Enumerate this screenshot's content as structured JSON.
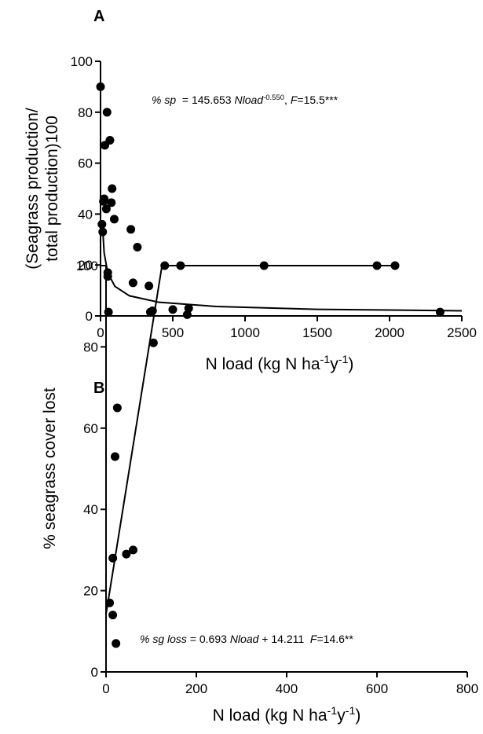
{
  "chart_data": [
    {
      "type": "scatter",
      "panel_label": "A",
      "y_label": [
        "(Seagrass production/",
        "total production)100"
      ],
      "x_label": [
        {
          "text": "N load (kg N ha"
        },
        {
          "text": "-1",
          "style": "sup"
        },
        {
          "text": "y"
        },
        {
          "text": "-1",
          "style": "sup"
        },
        {
          "text": ")"
        }
      ],
      "annotation": [
        {
          "text": "% sp",
          "style": "italic"
        },
        {
          "text": "  = 145.653 "
        },
        {
          "text": "Nload",
          "style": "italic"
        },
        {
          "text": "-0.550",
          "style": "sup"
        },
        {
          "text": ", "
        },
        {
          "text": "F",
          "style": "italic"
        },
        {
          "text": "=15.5***"
        }
      ],
      "x": [
        0,
        10,
        15,
        20,
        25,
        30,
        40,
        45,
        50,
        50,
        55,
        65,
        75,
        80,
        95,
        210,
        225,
        255,
        345,
        360,
        500,
        600,
        610,
        2350
      ],
      "y": [
        90,
        36,
        33,
        45,
        46,
        67,
        42,
        80,
        17,
        15.5,
        1.5,
        69,
        44.5,
        50,
        38,
        34,
        13,
        27,
        1.5,
        2,
        2.5,
        0.5,
        3,
        1.5
      ],
      "fit": {
        "x": [
          12,
          25,
          50,
          100,
          200,
          400,
          800,
          1500,
          2500
        ],
        "y": [
          37.1,
          24.8,
          16.9,
          11.6,
          7.9,
          5.4,
          3.7,
          2.6,
          2.0
        ]
      },
      "color": "#000000",
      "xlim": [
        0,
        2500
      ],
      "xticks": [
        0,
        500,
        1000,
        1500,
        2000,
        2500
      ],
      "ylim": [
        0,
        100
      ],
      "yticks": [
        0,
        20,
        40,
        60,
        80,
        100
      ]
    },
    {
      "type": "scatter",
      "panel_label": "B",
      "y_label": [
        "% seagrass cover lost"
      ],
      "x_label": [
        {
          "text": "N load (kg N ha"
        },
        {
          "text": "-1",
          "style": "sup"
        },
        {
          "text": "y"
        },
        {
          "text": "-1",
          "style": "sup"
        },
        {
          "text": ")"
        }
      ],
      "annotation": [
        {
          "text": "% sg loss",
          "style": "italic"
        },
        {
          "text": " = 0.693 "
        },
        {
          "text": "Nload",
          "style": "italic"
        },
        {
          "text": " + 14.211  "
        },
        {
          "text": "F",
          "style": "italic"
        },
        {
          "text": "=14.6**"
        }
      ],
      "x": [
        8,
        15,
        15,
        20,
        22,
        25,
        45,
        60,
        95,
        105,
        130,
        165,
        350,
        600,
        640
      ],
      "y": [
        17,
        28,
        14,
        53,
        7,
        65,
        29,
        30,
        95,
        81,
        100,
        100,
        100,
        100,
        100
      ],
      "fit": {
        "x": [
          0,
          124,
          640
        ],
        "y": [
          14.2,
          100,
          100
        ]
      },
      "color": "#000000",
      "xlim": [
        0,
        800
      ],
      "xticks": [
        0,
        200,
        400,
        600,
        800
      ],
      "ylim": [
        0,
        100
      ],
      "yticks": [
        0,
        20,
        40,
        60,
        80,
        100
      ]
    }
  ]
}
